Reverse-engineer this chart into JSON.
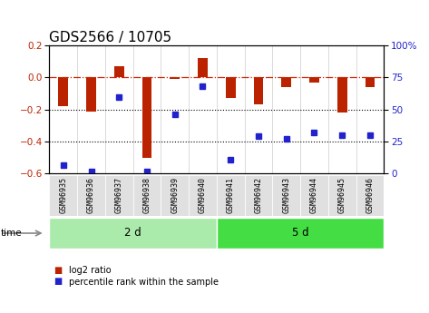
{
  "title": "GDS2566 / 10705",
  "samples": [
    "GSM96935",
    "GSM96936",
    "GSM96937",
    "GSM96938",
    "GSM96939",
    "GSM96940",
    "GSM96941",
    "GSM96942",
    "GSM96943",
    "GSM96944",
    "GSM96945",
    "GSM96946"
  ],
  "log2_ratio": [
    -0.18,
    -0.21,
    0.07,
    -0.5,
    -0.01,
    0.12,
    -0.13,
    -0.17,
    -0.06,
    -0.03,
    -0.22,
    -0.06
  ],
  "percentile_rank": [
    7,
    2,
    60,
    2,
    46,
    68,
    11,
    29,
    27,
    32,
    30,
    30
  ],
  "groups": [
    {
      "label": "2 d",
      "start": 0,
      "end": 6,
      "color": "#aaeaaa"
    },
    {
      "label": "5 d",
      "start": 6,
      "end": 12,
      "color": "#44dd44"
    }
  ],
  "ylim_left": [
    -0.6,
    0.2
  ],
  "ylim_right": [
    0,
    100
  ],
  "bar_color": "#bb2200",
  "dot_color": "#2222cc",
  "hline_color": "#cc2200",
  "dotline_vals": [
    -0.2,
    -0.4
  ],
  "legend_bar": "log2 ratio",
  "legend_dot": "percentile rank within the sample",
  "title_fontsize": 11,
  "tick_fontsize": 7.5
}
